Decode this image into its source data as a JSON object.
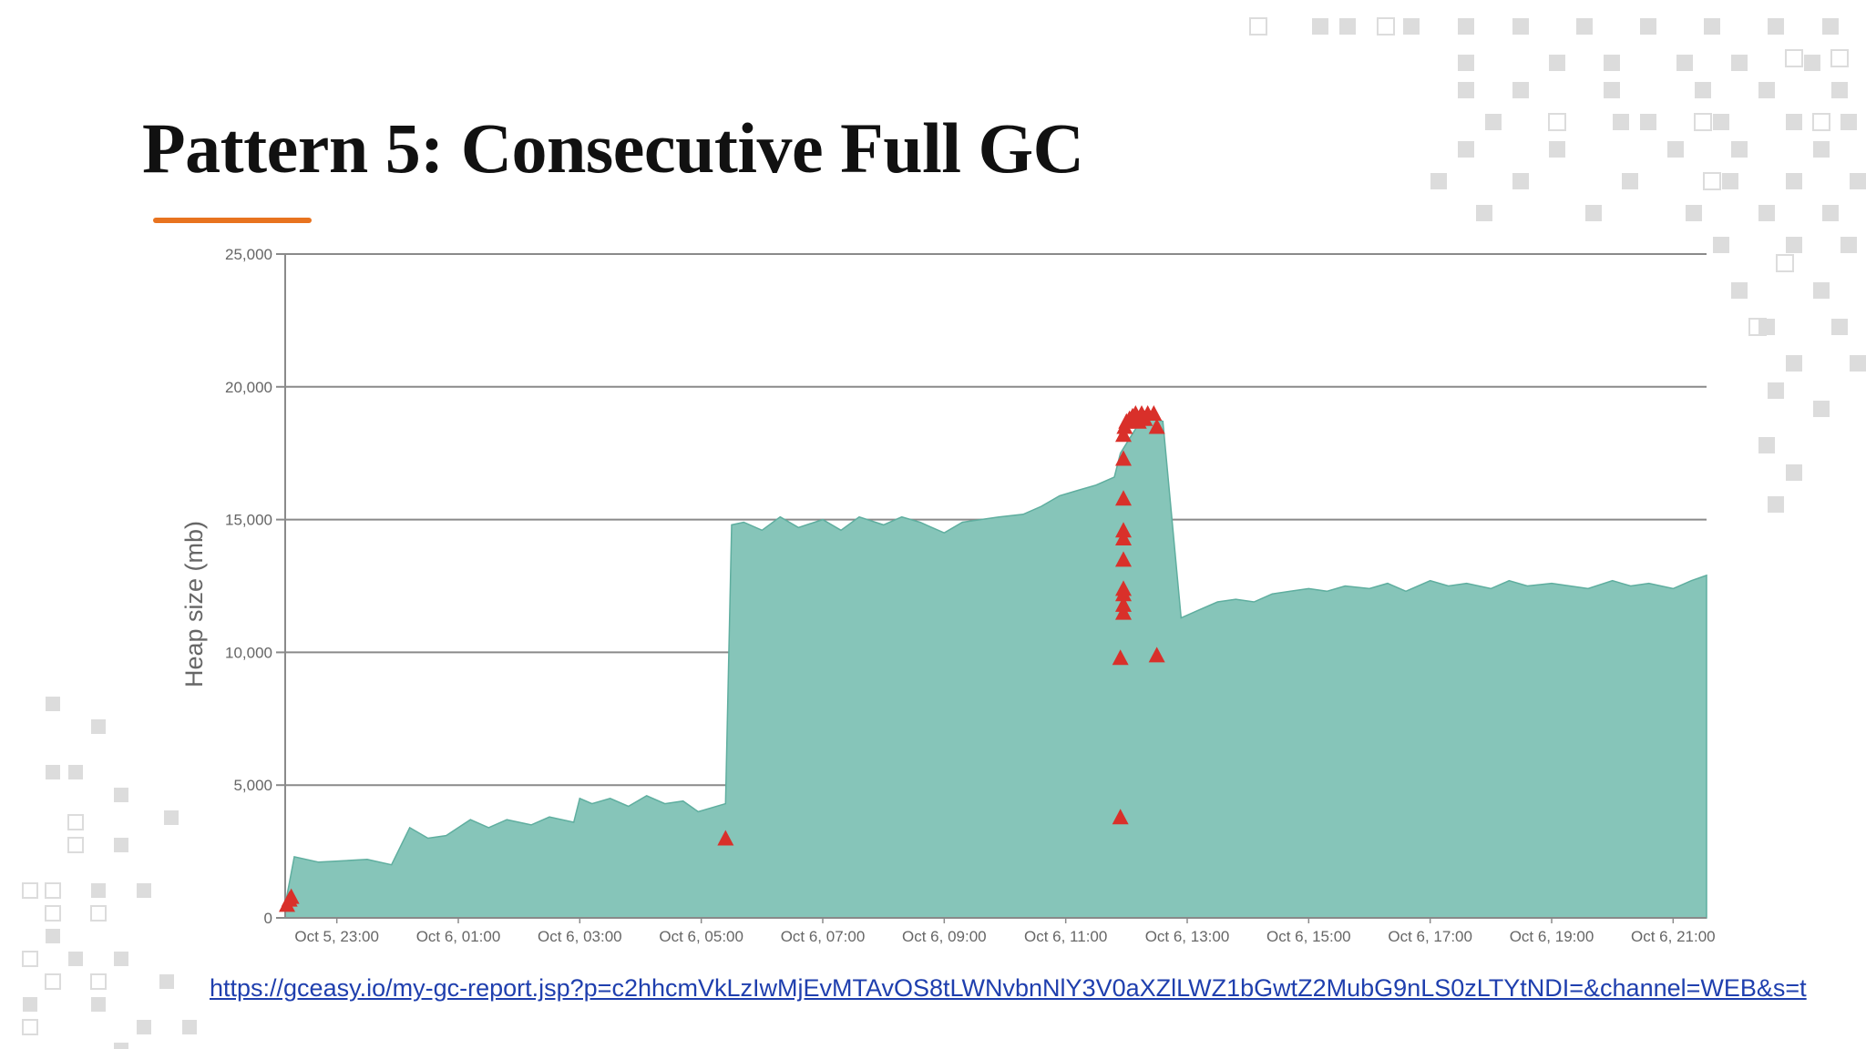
{
  "slide": {
    "title": "Pattern 5: Consecutive Full GC",
    "source_url": "https://gceasy.io/my-gc-report.jsp?p=c2hhcmVkLzIwMjEvMTAvOS8tLWNvbnNlY3V0aXZlLWZ1bGwtZ2MubG9nLS0zLTYtNDI=&channel=WEB&s=t"
  },
  "colors": {
    "area_fill": "#86c5b9",
    "area_line": "#5fae9f",
    "gc_marker": "#d9302a",
    "grid": "#8a8a8a",
    "accent": "#e8731f",
    "link": "#1f3fae"
  },
  "chart_data": {
    "type": "area",
    "ylabel": "Heap size (mb)",
    "xlabel": "",
    "ylim": [
      0,
      25000
    ],
    "y_ticks": [
      0,
      5000,
      10000,
      15000,
      20000,
      25000
    ],
    "y_tick_labels": [
      "0",
      "5,000",
      "10,000",
      "15,000",
      "20,000",
      "25,000"
    ],
    "x_range_hours": [
      -1.85,
      21.55
    ],
    "x_ticks": [
      -1,
      1,
      3,
      5,
      7,
      9,
      11,
      13,
      15,
      17,
      19,
      21
    ],
    "x_tick_labels": [
      "Oct 5, 23:00",
      "Oct 6, 01:00",
      "Oct 6, 03:00",
      "Oct 6, 05:00",
      "Oct 6, 07:00",
      "Oct 6, 09:00",
      "Oct 6, 11:00",
      "Oct 6, 13:00",
      "Oct 6, 15:00",
      "Oct 6, 17:00",
      "Oct 6, 19:00",
      "Oct 6, 21:00"
    ],
    "grid": true,
    "legend": "none",
    "series": [
      {
        "kind": "heap_after_gc_area",
        "x": [
          -1.85,
          -1.7,
          -1.3,
          -0.5,
          -0.1,
          0.2,
          0.5,
          0.8,
          1.2,
          1.5,
          1.8,
          2.2,
          2.5,
          2.9,
          3.0,
          3.2,
          3.5,
          3.8,
          4.1,
          4.4,
          4.7,
          4.95,
          5.4,
          5.5,
          5.7,
          6.0,
          6.3,
          6.6,
          7.0,
          7.3,
          7.6,
          8.0,
          8.3,
          8.6,
          9.0,
          9.3,
          9.6,
          9.9,
          10.3,
          10.6,
          10.9,
          11.2,
          11.5,
          11.8,
          11.9,
          12.2,
          12.3,
          12.6,
          12.9,
          13.2,
          13.5,
          13.8,
          14.1,
          14.4,
          14.7,
          15.0,
          15.3,
          15.6,
          16.0,
          16.3,
          16.6,
          17.0,
          17.3,
          17.6,
          18.0,
          18.3,
          18.6,
          19.0,
          19.3,
          19.6,
          20.0,
          20.3,
          20.6,
          21.0,
          21.3,
          21.55
        ],
        "y": [
          500,
          2300,
          2100,
          2200,
          2000,
          3400,
          3000,
          3100,
          3700,
          3400,
          3700,
          3500,
          3800,
          3600,
          4500,
          4300,
          4500,
          4200,
          4600,
          4300,
          4400,
          4000,
          4300,
          14800,
          14900,
          14600,
          15100,
          14700,
          15000,
          14600,
          15100,
          14800,
          15100,
          14900,
          14500,
          14900,
          15000,
          15100,
          15200,
          15500,
          15900,
          16100,
          16300,
          16600,
          17500,
          18600,
          18900,
          18700,
          11300,
          11600,
          11900,
          12000,
          11900,
          12200,
          12300,
          12400,
          12300,
          12500,
          12400,
          12600,
          12300,
          12700,
          12500,
          12600,
          12400,
          12700,
          12500,
          12600,
          12500,
          12400,
          12700,
          12500,
          12600,
          12400,
          12700,
          12900
        ]
      },
      {
        "kind": "full_gc_events",
        "x": [
          -1.82,
          -1.78,
          -1.75,
          5.4,
          11.9,
          11.9,
          11.95,
          11.95,
          11.95,
          11.95,
          11.95,
          11.95,
          11.95,
          11.95,
          11.95,
          11.95,
          11.97,
          12.0,
          12.05,
          12.1,
          12.15,
          12.2,
          12.25,
          12.3,
          12.35,
          12.45,
          12.5,
          12.5
        ],
        "y": [
          500,
          700,
          800,
          3000,
          3800,
          9800,
          11500,
          11800,
          12200,
          12400,
          13500,
          14300,
          14600,
          15800,
          17300,
          18200,
          18500,
          18700,
          18800,
          18900,
          19000,
          18700,
          19000,
          18800,
          19000,
          19000,
          18500,
          9900
        ]
      }
    ]
  }
}
